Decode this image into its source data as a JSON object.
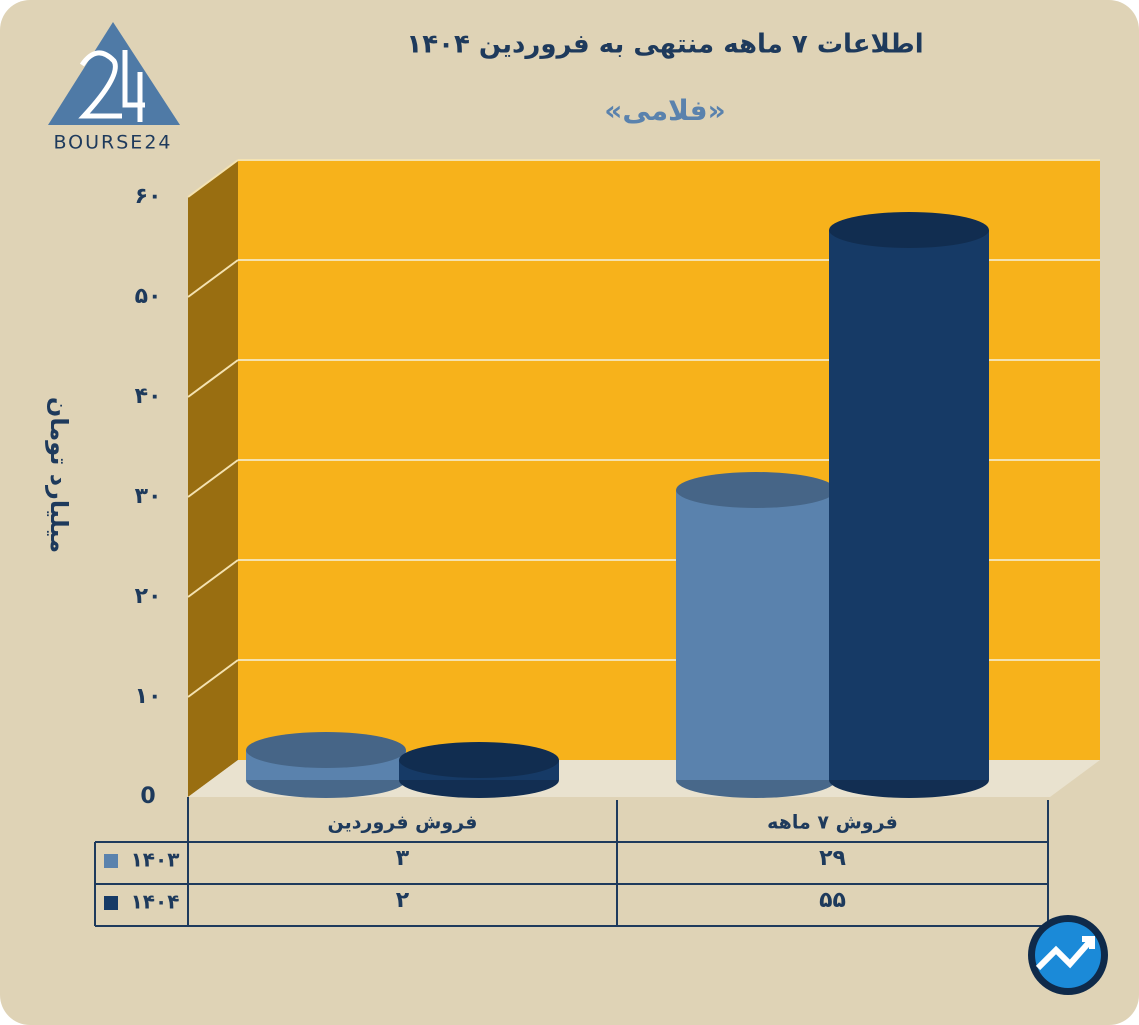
{
  "chart_data": {
    "type": "bar3d",
    "title": "اطلاعات ۷ ماهه منتهی به فروردین ۱۴۰۴",
    "subtitle": "«فلامی»",
    "logo_text": "BOURSE24",
    "y_label": "میلیارد تومان",
    "categories": [
      "فروش فروردین",
      "فروش ۷ ماهه"
    ],
    "series": [
      {
        "name": "۱۴۰۳",
        "color": "#5a82ad",
        "values": [
          3,
          29
        ],
        "value_labels": [
          "۳",
          "۲۹"
        ]
      },
      {
        "name": "۱۴۰۴",
        "color": "#163a66",
        "values": [
          2,
          55
        ],
        "value_labels": [
          "۲",
          "۵۵"
        ]
      }
    ],
    "ylim": [
      0,
      60
    ],
    "yticks": [
      0,
      {
        "value": 10,
        "label": "۱۰"
      },
      {
        "value": 20,
        "label": "۲۰"
      },
      {
        "value": 30,
        "label": "۳۰"
      },
      {
        "value": 40,
        "label": "۴۰"
      },
      {
        "value": 50,
        "label": "۵۰"
      },
      {
        "value": 60,
        "label": "۶۰"
      }
    ],
    "grid": true,
    "wall_color": "#f7b21b"
  }
}
